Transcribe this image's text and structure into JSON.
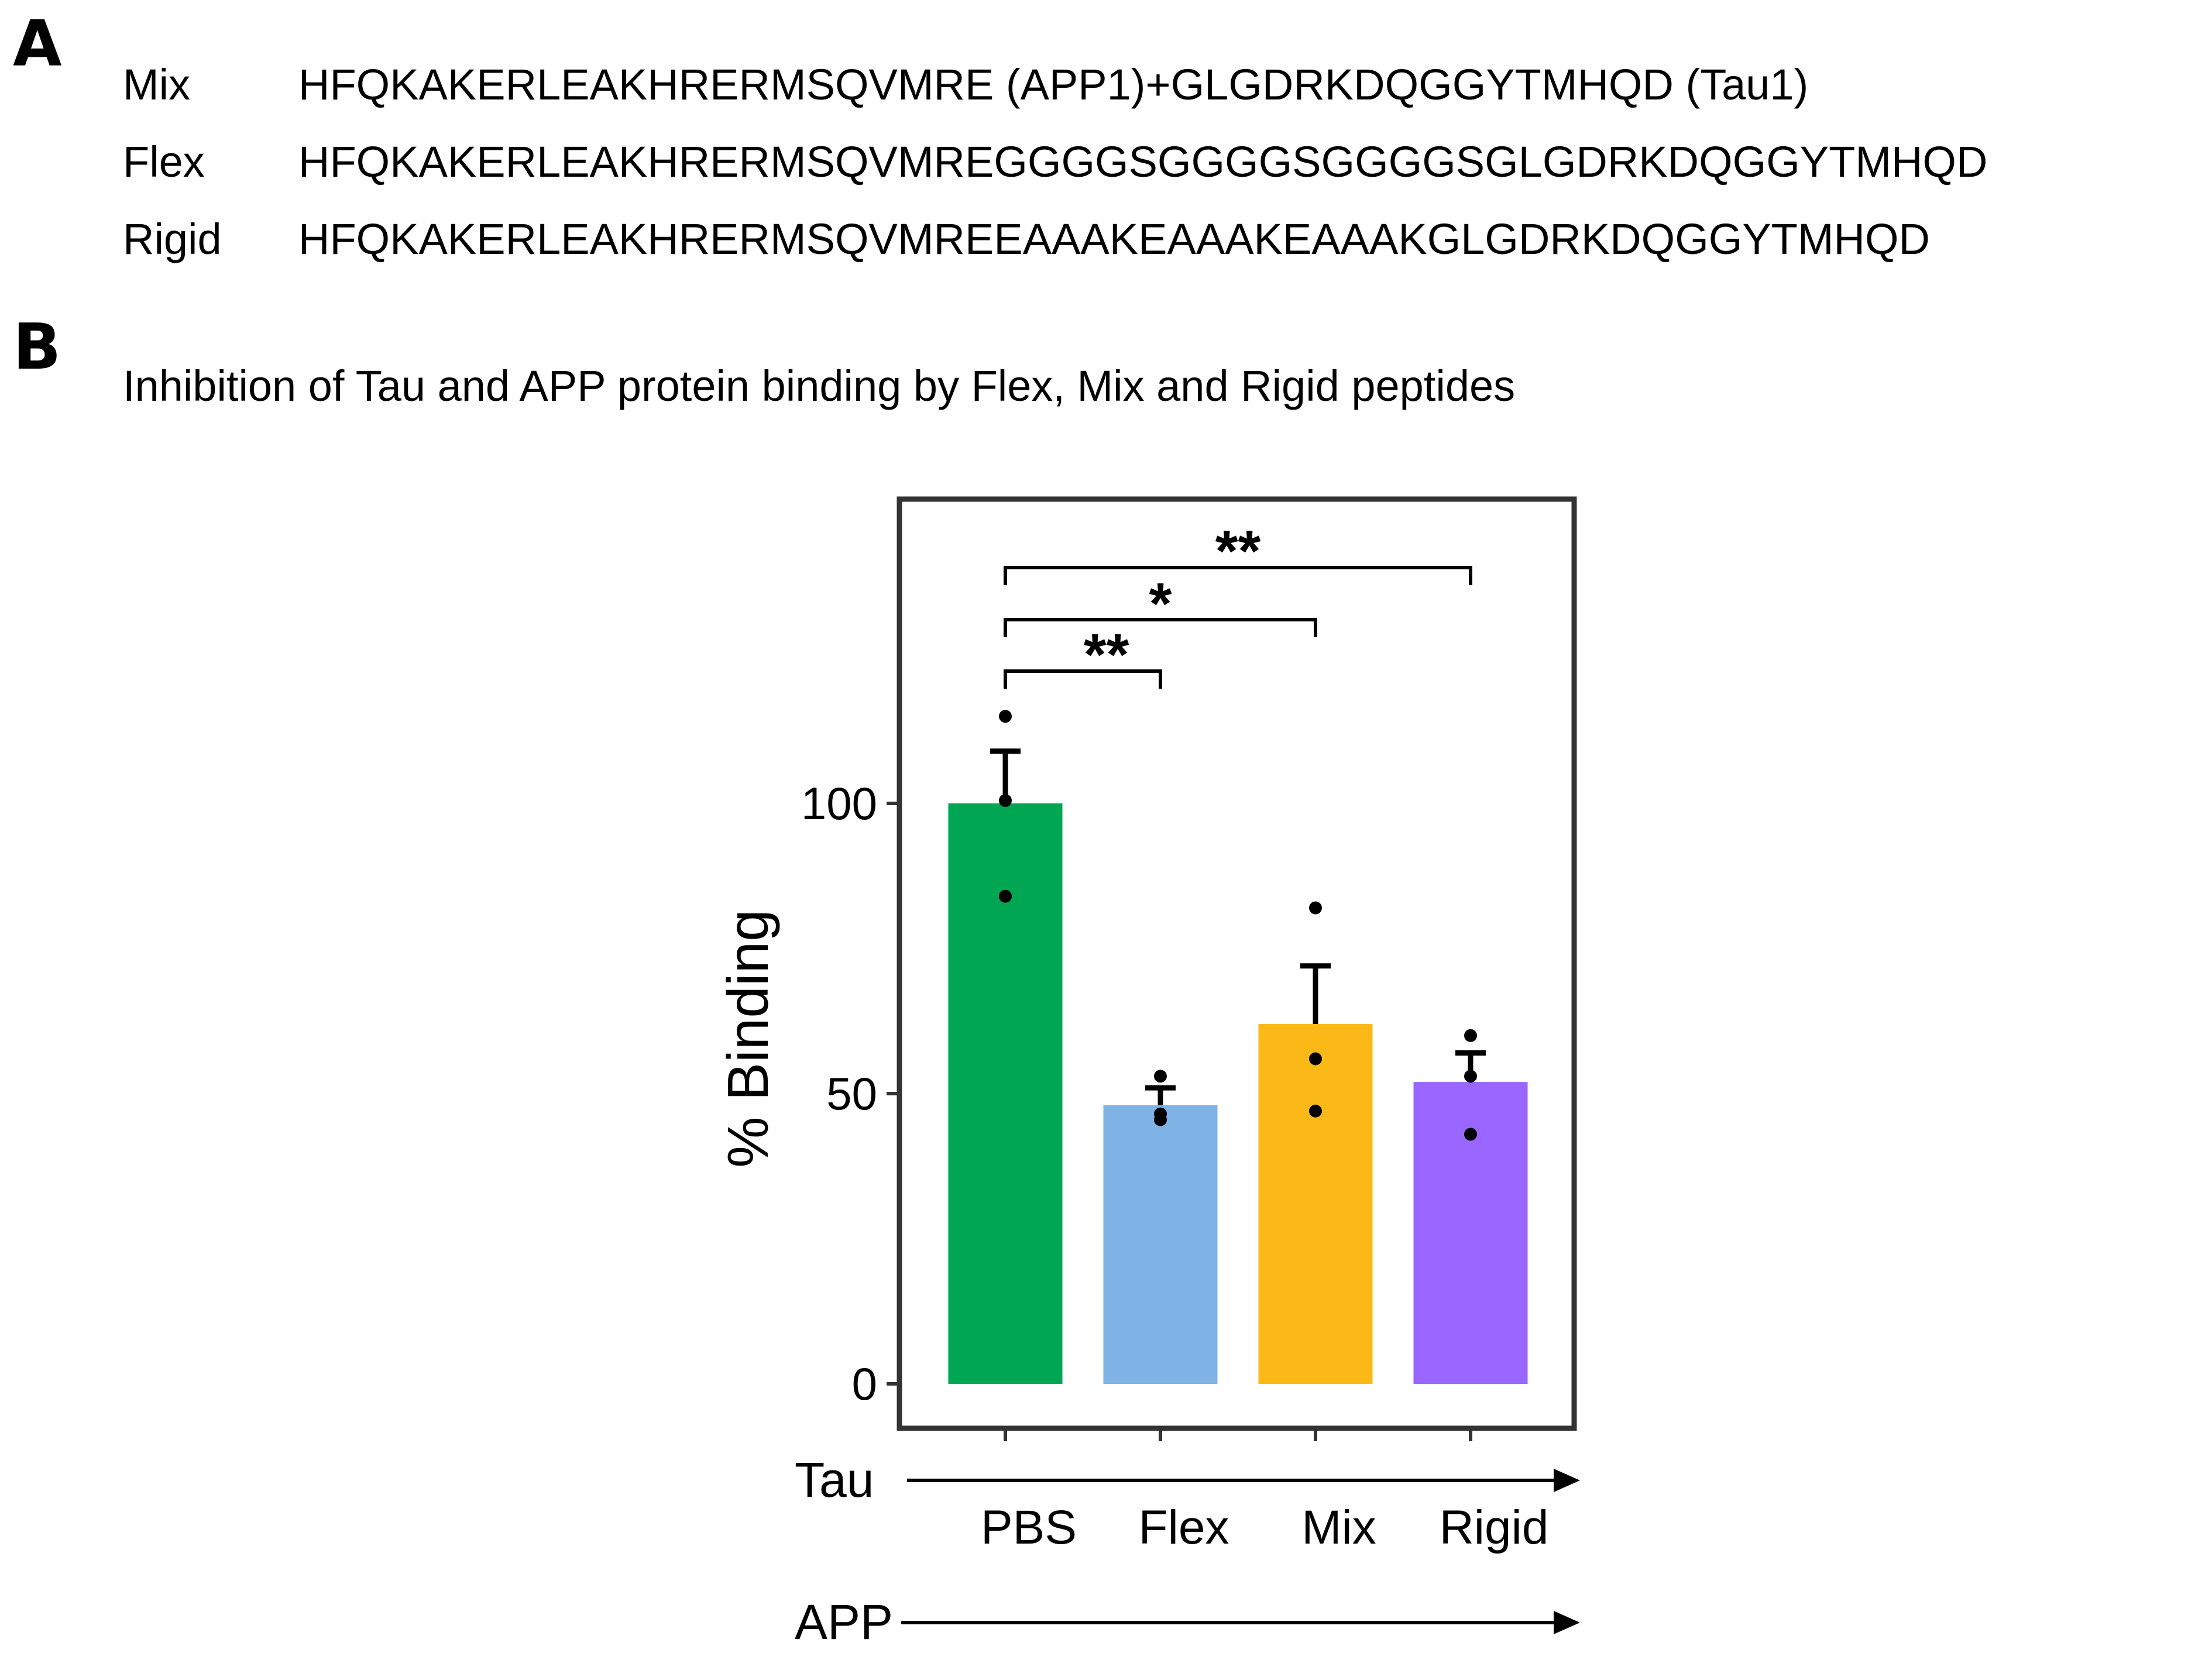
{
  "panel_a": {
    "letter": "A",
    "sequences": [
      {
        "name": "Mix",
        "sequence": "HFQKAKERLEAKHRERMSQVMRE (APP1)+GLGDRKDQGGYTMHQD (Tau1)"
      },
      {
        "name": "Flex",
        "sequence": "HFQKAKERLEAKHRERMSQVMREGGGGSGGGGSGGGGSGLGDRKDQGGYTMHQD"
      },
      {
        "name": "Rigid",
        "sequence": "HFQKAKERLEAKHRERMSQVMREEAAAKEAAAKEAAAKGLGDRKDQGGYTMHQD"
      }
    ]
  },
  "panel_b": {
    "letter": "B",
    "title": "Inhibition of Tau and APP protein binding by Flex, Mix and Rigid peptides"
  },
  "chart_data": {
    "type": "bar",
    "title": "Inhibition of Tau and APP protein binding by Flex, Mix and Rigid peptides",
    "categories": [
      "PBS",
      "Flex",
      "Mix",
      "Rigid"
    ],
    "values": [
      100,
      48,
      62,
      52
    ],
    "error_sem": [
      9,
      3,
      10,
      5
    ],
    "colors": [
      "#00A651",
      "#7FB2E5",
      "#FBB917",
      "#9966FF"
    ],
    "points": [
      [
        115,
        100.5,
        84
      ],
      [
        53,
        46.5,
        45.5
      ],
      [
        82,
        56,
        47
      ],
      [
        60,
        53,
        43
      ]
    ],
    "ylabel": "% Binding",
    "ylim": [
      0,
      145
    ],
    "yticks": [
      0,
      50,
      100
    ],
    "x_row_labels": [
      "Tau",
      "APP"
    ],
    "significance": [
      {
        "from": "PBS",
        "to": "Flex",
        "label": "**"
      },
      {
        "from": "PBS",
        "to": "Mix",
        "label": "*"
      },
      {
        "from": "PBS",
        "to": "Rigid",
        "label": "**"
      }
    ],
    "grid": false,
    "legend": "none"
  }
}
